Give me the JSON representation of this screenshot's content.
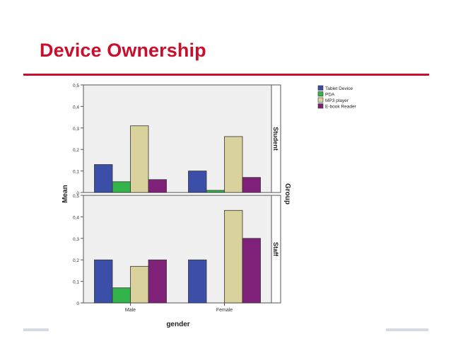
{
  "slide": {
    "title": "Device Ownership",
    "accent_color": "#c8102e"
  },
  "chart_data": {
    "type": "bar",
    "xlabel": "gender",
    "ylabel": "Mean",
    "panel_group_label": "Group",
    "categories": [
      "Male",
      "Female"
    ],
    "ylim": [
      0,
      0.5
    ],
    "yticks": [
      "0",
      "0,1",
      "0,2",
      "0,3",
      "0,4",
      "0,5"
    ],
    "grid": false,
    "legend_position": "top-right",
    "panels": [
      {
        "name": "Student",
        "series": [
          {
            "name": "Tablet Device",
            "color": "#3b4fa8",
            "values": [
              0.13,
              0.1
            ]
          },
          {
            "name": "PDA",
            "color": "#32b44a",
            "values": [
              0.05,
              0.01
            ]
          },
          {
            "name": "MP3 player",
            "color": "#d9d29c",
            "values": [
              0.31,
              0.26
            ]
          },
          {
            "name": "E-book Reader",
            "color": "#7f2178",
            "values": [
              0.06,
              0.07
            ]
          }
        ]
      },
      {
        "name": "Staff",
        "series": [
          {
            "name": "Tablet Device",
            "color": "#3b4fa8",
            "values": [
              0.2,
              0.2
            ]
          },
          {
            "name": "PDA",
            "color": "#32b44a",
            "values": [
              0.07,
              0.0
            ]
          },
          {
            "name": "MP3 player",
            "color": "#d9d29c",
            "values": [
              0.17,
              0.43
            ]
          },
          {
            "name": "E-book Reader",
            "color": "#7f2178",
            "values": [
              0.2,
              0.3
            ]
          }
        ]
      }
    ]
  }
}
